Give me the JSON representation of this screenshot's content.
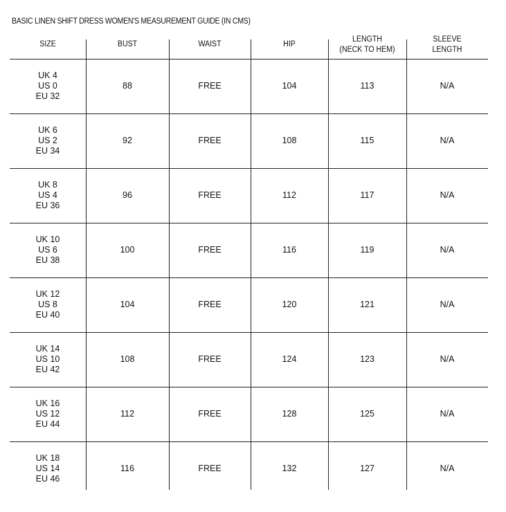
{
  "title": "BASIC LINEN SHIFT DRESS WOMEN'S MEASUREMENT GUIDE (IN CMS)",
  "columns": [
    {
      "label": [
        "SIZE"
      ]
    },
    {
      "label": [
        "BUST"
      ]
    },
    {
      "label": [
        "WAIST"
      ]
    },
    {
      "label": [
        "HIP"
      ]
    },
    {
      "label": [
        "LENGTH",
        "(NECK TO HEM)"
      ]
    },
    {
      "label": [
        "SLEEVE",
        "LENGTH"
      ]
    }
  ],
  "rows": [
    {
      "size": [
        "UK 4",
        "US 0",
        "EU 32"
      ],
      "bust": "88",
      "waist": "FREE",
      "hip": "104",
      "length": "113",
      "sleeve": "N/A"
    },
    {
      "size": [
        "UK 6",
        "US 2",
        "EU 34"
      ],
      "bust": "92",
      "waist": "FREE",
      "hip": "108",
      "length": "115",
      "sleeve": "N/A"
    },
    {
      "size": [
        "UK 8",
        "US 4",
        "EU 36"
      ],
      "bust": "96",
      "waist": "FREE",
      "hip": "112",
      "length": "117",
      "sleeve": "N/A"
    },
    {
      "size": [
        "UK 10",
        "US 6",
        "EU 38"
      ],
      "bust": "100",
      "waist": "FREE",
      "hip": "116",
      "length": "119",
      "sleeve": "N/A"
    },
    {
      "size": [
        "UK 12",
        "US 8",
        "EU 40"
      ],
      "bust": "104",
      "waist": "FREE",
      "hip": "120",
      "length": "121",
      "sleeve": "N/A"
    },
    {
      "size": [
        "UK 14",
        "US 10",
        "EU 42"
      ],
      "bust": "108",
      "waist": "FREE",
      "hip": "124",
      "length": "123",
      "sleeve": "N/A"
    },
    {
      "size": [
        "UK 16",
        "US 12",
        "EU 44"
      ],
      "bust": "112",
      "waist": "FREE",
      "hip": "128",
      "length": "125",
      "sleeve": "N/A"
    },
    {
      "size": [
        "UK 18",
        "US 14",
        "EU 46"
      ],
      "bust": "116",
      "waist": "FREE",
      "hip": "132",
      "length": "127",
      "sleeve": "N/A"
    }
  ]
}
